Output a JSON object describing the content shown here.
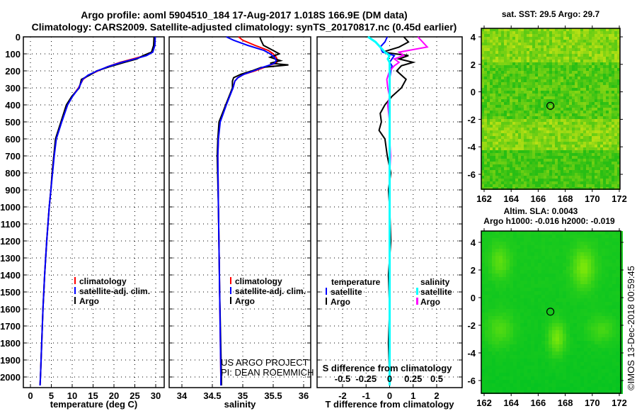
{
  "title_line1": "Argo profile: aoml 5904510_184 17-Aug-2017 1.018S 166.9E (DM data)",
  "title_line2": "Climatology: CARS2009. Satellite-adjusted climatology: synTS_20170817.nc (0.45d earlier)",
  "credit": "©IMOS 13-Dec-2018 00:59:45",
  "project": [
    "US ARGO PROJECT",
    "PI: DEAN ROEMMICH"
  ],
  "colors": {
    "climatology": "#ff0000",
    "satellite": "#0000ff",
    "argo": "#000000",
    "sal_satellite": "#00ffff",
    "sal_argo": "#ff00ff"
  },
  "depth_ticks": [
    "0",
    "100",
    "200",
    "300",
    "400",
    "500",
    "600",
    "700",
    "800",
    "900",
    "1000",
    "1100",
    "1200",
    "1300",
    "1400",
    "1500",
    "1600",
    "1700",
    "1800",
    "1900",
    "2000"
  ],
  "chart_data": [
    {
      "type": "line",
      "xlabel": "temperature (deg C)",
      "ylabel": "depth",
      "xlim": [
        -3.5,
        31.5
      ],
      "ylim": [
        2060,
        0
      ],
      "xticks": [
        "0",
        "5",
        "10",
        "15",
        "20",
        "25",
        "30"
      ],
      "legend": [
        "climatology",
        "satellite-adj. clim.",
        "Argo"
      ],
      "depth": [
        0,
        50,
        90,
        110,
        130,
        150,
        175,
        200,
        225,
        250,
        300,
        350,
        400,
        500,
        600,
        700,
        800,
        900,
        1000,
        1200,
        1400,
        1600,
        1800,
        2000,
        2050
      ],
      "series": [
        {
          "name": "climatology",
          "values": [
            29.8,
            29.7,
            29.2,
            27.5,
            24.5,
            21.5,
            18.5,
            16.2,
            14.0,
            12.6,
            11.5,
            10.0,
            8.8,
            7.4,
            6.1,
            5.6,
            5.2,
            4.9,
            4.5,
            3.9,
            3.4,
            3.0,
            2.7,
            2.4,
            2.3
          ]
        },
        {
          "name": "satellite-adj. clim.",
          "values": [
            29.9,
            29.8,
            29.3,
            27.8,
            25.0,
            21.8,
            18.6,
            16.0,
            13.8,
            12.5,
            11.6,
            10.1,
            8.9,
            7.5,
            6.2,
            5.7,
            5.3,
            4.9,
            4.5,
            3.9,
            3.4,
            3.0,
            2.7,
            2.4,
            2.3
          ]
        },
        {
          "name": "Argo",
          "values": [
            29.6,
            29.5,
            29.0,
            27.0,
            25.5,
            22.5,
            19.0,
            15.9,
            14.2,
            12.2,
            11.7,
            9.9,
            8.6,
            7.3,
            6.0,
            5.6,
            5.2,
            4.9,
            4.5,
            3.9,
            3.4,
            3.0,
            2.7,
            2.4,
            2.3
          ]
        }
      ]
    },
    {
      "type": "line",
      "xlabel": "salinity",
      "ylabel": "depth",
      "xlim": [
        33.8,
        36.1
      ],
      "ylim": [
        2060,
        0
      ],
      "xticks": [
        "34",
        "34.5",
        "35",
        "35.5",
        "36"
      ],
      "legend": [
        "climatology",
        "satellite-adj. clim.",
        "Argo"
      ],
      "depth": [
        0,
        20,
        50,
        80,
        100,
        120,
        140,
        155,
        165,
        180,
        200,
        220,
        240,
        260,
        300,
        400,
        500,
        600,
        700,
        1000,
        1500,
        2000,
        2050
      ],
      "series": [
        {
          "name": "climatology",
          "values": [
            34.93,
            35.0,
            35.2,
            35.42,
            35.5,
            35.55,
            35.57,
            35.55,
            35.45,
            35.35,
            35.2,
            35.02,
            34.92,
            34.87,
            34.84,
            34.72,
            34.62,
            34.6,
            34.59,
            34.6,
            34.62,
            34.64,
            34.64
          ]
        },
        {
          "name": "satellite-adj. clim.",
          "values": [
            34.73,
            34.85,
            35.08,
            35.35,
            35.45,
            35.52,
            35.55,
            35.52,
            35.45,
            35.32,
            35.18,
            35.02,
            34.92,
            34.87,
            34.84,
            34.73,
            34.63,
            34.6,
            34.59,
            34.6,
            34.62,
            34.64,
            34.64
          ]
        },
        {
          "name": "Argo",
          "values": [
            35.28,
            35.3,
            35.34,
            35.5,
            35.6,
            35.45,
            35.62,
            35.45,
            35.75,
            35.3,
            35.15,
            34.97,
            34.85,
            34.83,
            34.83,
            34.72,
            34.61,
            34.59,
            34.58,
            34.6,
            34.62,
            34.65,
            34.65
          ]
        }
      ]
    },
    {
      "type": "line",
      "xlabel": "T difference from climatology",
      "x2label": "S difference from climatology",
      "ylabel": "depth",
      "xlim": [
        -3.1,
        3.1
      ],
      "ylim": [
        2060,
        0
      ],
      "xticks": [
        "-2",
        "-1",
        "0",
        "1",
        "2"
      ],
      "x2ticks": [
        "-0.5",
        "-0.25",
        "0",
        "0.25",
        "0.5"
      ],
      "legend_temperature": {
        "title": "temperature",
        "items": [
          "satellite",
          "Argo"
        ]
      },
      "legend_salinity": {
        "title": "salinity",
        "items": [
          "satellite",
          "Argo"
        ]
      },
      "depth": [
        0,
        30,
        60,
        90,
        110,
        130,
        150,
        170,
        200,
        250,
        300,
        350,
        400,
        450,
        500,
        550,
        600,
        700,
        800,
        900,
        1000,
        1200,
        1400,
        1600,
        1800,
        2000,
        2050
      ],
      "series": [
        {
          "name": "temperature satellite",
          "values": [
            -0.1,
            -0.2,
            -0.4,
            -0.3,
            0.2,
            0.1,
            0.0,
            0.1,
            0.05,
            0.0,
            0.0,
            0.0,
            0.0,
            0.0,
            0.0,
            0.0,
            0.0,
            0.0,
            0.0,
            0.0,
            0.0,
            0.0,
            0.0,
            0.0,
            0.0,
            0.0,
            0.0
          ]
        },
        {
          "name": "temperature Argo",
          "values": [
            0.6,
            0.8,
            0.4,
            -0.3,
            0.8,
            0.4,
            1.0,
            0.5,
            0.3,
            0.7,
            0.5,
            0.1,
            -0.2,
            -0.4,
            -0.35,
            -0.45,
            -0.2,
            -0.1,
            0.05,
            -0.05,
            0.0,
            0.05,
            -0.05,
            0.0,
            -0.05,
            0.0,
            0.0
          ]
        },
        {
          "name": "salinity satellite",
          "values": [
            -0.23,
            -0.15,
            -0.1,
            -0.05,
            0.0,
            -0.02,
            0.0,
            0.0,
            0.0,
            0.0,
            0.0,
            0.0,
            0.0,
            0.0,
            0.0,
            0.0,
            0.0,
            0.0,
            0.0,
            0.0,
            0.0,
            0.0,
            0.0,
            0.0,
            0.0,
            0.0,
            0.0
          ]
        },
        {
          "name": "salinity Argo",
          "values": [
            0.3,
            0.35,
            0.4,
            0.1,
            0.15,
            0.05,
            0.1,
            0.05,
            0.0,
            -0.03,
            -0.02,
            0.0,
            -0.02,
            -0.01,
            0.0,
            0.0,
            0.0,
            0.01,
            0.0,
            0.0,
            0.0,
            0.0,
            0.0,
            0.0,
            0.0,
            0.0,
            0.0
          ]
        }
      ]
    },
    {
      "type": "heatmap",
      "title": "sat. SST: 29.5 Argo: 29.7",
      "xlim": [
        161.8,
        172
      ],
      "ylim": [
        -7.1,
        4.6
      ],
      "xticks": [
        "162",
        "164",
        "166",
        "168",
        "170",
        "172"
      ],
      "yticks": [
        "-6",
        "-4",
        "-2",
        "0",
        "2",
        "4"
      ],
      "marker": {
        "lon": 166.9,
        "lat": -1.018
      }
    },
    {
      "type": "heatmap",
      "title": "Altim. SLA: 0.0043",
      "subtitle": "Argo h1000: -0.016 h2000: -0.019",
      "xlim": [
        161.8,
        172
      ],
      "ylim": [
        -7.1,
        4.8
      ],
      "xticks": [
        "162",
        "164",
        "166",
        "168",
        "170",
        "172"
      ],
      "yticks": [
        "-6",
        "-4",
        "-2",
        "0",
        "2",
        "4"
      ],
      "marker": {
        "lon": 166.9,
        "lat": -1.018
      }
    }
  ]
}
